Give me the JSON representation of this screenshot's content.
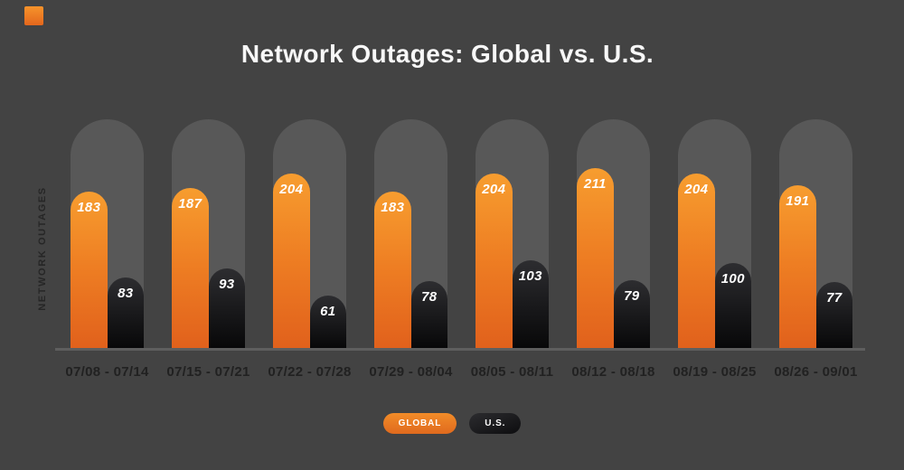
{
  "title": "Network Outages: Global vs. U.S.",
  "y_axis_label": "NETWORK OUTAGES",
  "legend": {
    "global_label": "GLOBAL",
    "us_label": "U.S."
  },
  "colors": {
    "background": "#434343",
    "track": "#585858",
    "global_orange_top": "#f79d2f",
    "global_orange_bottom": "#e1611c",
    "us_black_top": "#2d2d30",
    "us_black_bottom": "#080809",
    "title_text": "#f8f8f8",
    "axis_text": "#212121",
    "value_text": "#ffffff",
    "baseline": "#5e5e5e"
  },
  "chart_data": {
    "type": "bar",
    "title": "Network Outages: Global vs. U.S.",
    "xlabel": "",
    "ylabel": "NETWORK OUTAGES",
    "categories": [
      "07/08 - 07/14",
      "07/15 - 07/21",
      "07/22 - 07/28",
      "07/29 - 08/04",
      "08/05 - 08/11",
      "08/12 - 08/18",
      "08/19 - 08/25",
      "08/26 - 09/01"
    ],
    "series": [
      {
        "name": "GLOBAL",
        "values": [
          183,
          187,
          204,
          183,
          204,
          211,
          204,
          191
        ]
      },
      {
        "name": "U.S.",
        "values": [
          83,
          93,
          61,
          78,
          103,
          79,
          100,
          77
        ]
      }
    ],
    "ylim": [
      0,
      268
    ],
    "grid": false,
    "value_labels": true,
    "legend_position": "bottom",
    "bar_style": "rounded-pill-on-gray-track"
  }
}
